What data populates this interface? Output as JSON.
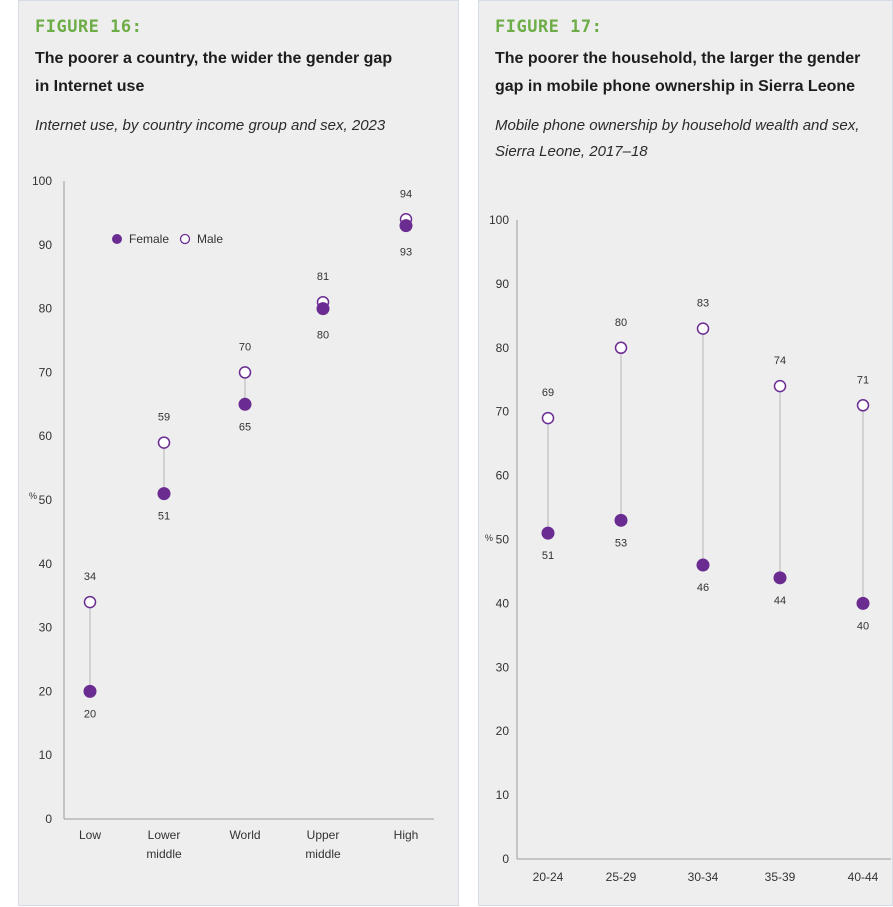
{
  "figures": [
    {
      "label": "FIGURE 16:",
      "title": "The poorer a country, the wider the gender gap in Internet use",
      "subtitle": "Internet use, by country income group and sex, 2023"
    },
    {
      "label": "FIGURE 17:",
      "title": "The poorer the household, the larger the gender gap in mobile phone ownership in Sierra Leone",
      "subtitle": "Mobile phone ownership by household wealth and sex, Sierra Leone, 2017–18"
    }
  ],
  "colors": {
    "female": "#6a2c91",
    "male": "#6a2c91",
    "connector": "#c4c4c4",
    "label_green": "#6dad47"
  },
  "chart_data": [
    {
      "type": "scatter",
      "title": "The poorer a country, the wider the gender gap in Internet use",
      "subtitle": "Internet use, by country income group and sex, 2023",
      "ylabel": "%",
      "ylim": [
        0,
        100
      ],
      "yticks": [
        0,
        10,
        20,
        30,
        40,
        50,
        60,
        70,
        80,
        90,
        100
      ],
      "categories": [
        "Low",
        "Lower middle",
        "World",
        "Upper middle",
        "High"
      ],
      "category_label_lines": [
        [
          "Low"
        ],
        [
          "Lower",
          "middle"
        ],
        [
          "World"
        ],
        [
          "Upper",
          "middle"
        ],
        [
          "High"
        ]
      ],
      "series": [
        {
          "name": "Female",
          "values": [
            20,
            51,
            65,
            80,
            93
          ],
          "marker": "filled"
        },
        {
          "name": "Male",
          "values": [
            34,
            59,
            70,
            81,
            94
          ],
          "marker": "hollow"
        }
      ],
      "legend": {
        "position": "top-left",
        "entries": [
          "Female",
          "Male"
        ]
      },
      "grid": false
    },
    {
      "type": "scatter",
      "title": "The poorer the household, the larger the gender gap in mobile phone ownership in Sierra Leone",
      "subtitle": "Mobile phone ownership by household wealth and sex, Sierra Leone, 2017–18",
      "ylabel": "%",
      "ylim": [
        0,
        100
      ],
      "yticks": [
        0,
        10,
        20,
        30,
        40,
        50,
        60,
        70,
        80,
        90,
        100
      ],
      "categories": [
        "20-24",
        "25-29",
        "30-34",
        "35-39",
        "40-44"
      ],
      "series": [
        {
          "name": "Female",
          "values": [
            51,
            53,
            46,
            44,
            40
          ],
          "marker": "filled"
        },
        {
          "name": "Male",
          "values": [
            69,
            80,
            83,
            74,
            71
          ],
          "marker": "hollow"
        }
      ],
      "grid": false
    }
  ]
}
